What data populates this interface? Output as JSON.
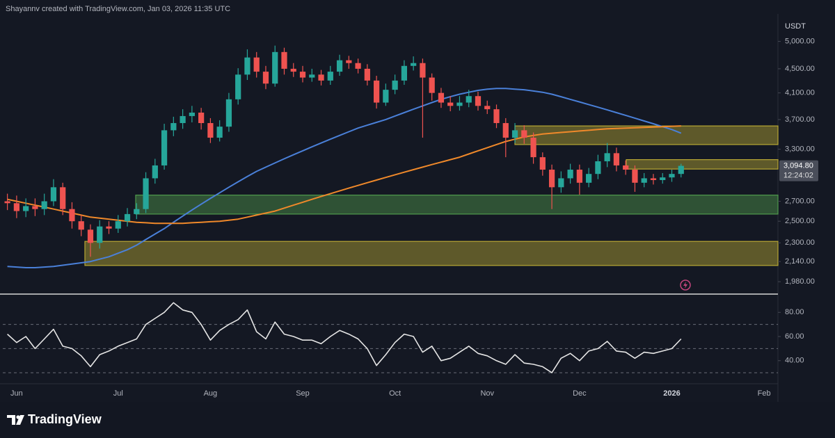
{
  "header": "Shayannv created with TradingView.com, Jan 03, 2026 11:35 UTC",
  "footer_brand": "TradingView",
  "chart_data": [
    {
      "type": "candlestick",
      "log_scale": true,
      "grid": false,
      "currency": "USDT",
      "up_color": "#26a69a",
      "down_color": "#ef5350",
      "categories": [
        null,
        "Jun",
        null,
        null,
        null,
        null,
        null,
        null,
        null,
        null,
        null,
        null,
        "Jul",
        null,
        null,
        null,
        null,
        null,
        null,
        null,
        null,
        null,
        "Aug",
        null,
        null,
        null,
        null,
        null,
        null,
        null,
        null,
        null,
        "Sep",
        null,
        null,
        null,
        null,
        null,
        null,
        null,
        null,
        null,
        "Oct",
        null,
        null,
        null,
        null,
        null,
        null,
        null,
        null,
        null,
        "Nov",
        null,
        null,
        null,
        null,
        null,
        null,
        null,
        null,
        null,
        "Dec",
        null,
        null,
        null,
        null,
        null,
        null,
        null,
        null,
        null,
        "2026",
        null,
        null,
        null,
        null,
        null,
        null,
        null,
        null,
        null,
        "Feb",
        null
      ],
      "open": [
        2700,
        2680,
        2600,
        2650,
        2620,
        2700,
        2850,
        2620,
        2500,
        2420,
        2300,
        2450,
        2430,
        2500,
        2570,
        2620,
        2950,
        3100,
        3550,
        3650,
        3750,
        3800,
        3650,
        3450,
        3600,
        4000,
        4400,
        4700,
        4450,
        4250,
        4800,
        4500,
        4450,
        4350,
        4400,
        4300,
        4450,
        4650,
        4600,
        4500,
        4300,
        3950,
        4150,
        4300,
        4550,
        4600,
        4350,
        4100,
        3950,
        3900,
        3950,
        4050,
        3900,
        3850,
        3650,
        3450,
        3550,
        3450,
        3200,
        3050,
        2850,
        2950,
        3050,
        2900,
        3000,
        3150,
        3250,
        3100,
        3050,
        2900,
        2950,
        2930,
        2960,
        3000,
        null,
        null,
        null,
        null,
        null,
        null,
        null,
        null,
        null,
        null
      ],
      "high": [
        2780,
        2760,
        2730,
        2730,
        2780,
        2940,
        2900,
        2690,
        2560,
        2470,
        2510,
        2500,
        2560,
        2630,
        2680,
        3020,
        3180,
        3640,
        3740,
        3850,
        3900,
        3870,
        3720,
        3690,
        4100,
        4510,
        4850,
        4800,
        4550,
        4920,
        4880,
        4600,
        4550,
        4500,
        4480,
        4550,
        4750,
        4730,
        4680,
        4580,
        4380,
        4250,
        4400,
        4650,
        4720,
        4680,
        4420,
        4180,
        4050,
        4050,
        4150,
        4120,
        3980,
        3920,
        3720,
        3650,
        3620,
        3520,
        3260,
        3110,
        3030,
        3120,
        3110,
        3070,
        3230,
        3380,
        3320,
        3160,
        3100,
        3010,
        3000,
        3010,
        3050,
        3120,
        null,
        null,
        null,
        null,
        null,
        null,
        null,
        null,
        null,
        null
      ],
      "low": [
        2610,
        2530,
        2540,
        2550,
        2560,
        2650,
        2560,
        2430,
        2360,
        2180,
        2250,
        2380,
        2390,
        2450,
        2520,
        2580,
        2890,
        3050,
        3470,
        3570,
        3660,
        3560,
        3380,
        3400,
        3530,
        3920,
        4310,
        4350,
        4160,
        4200,
        4400,
        4360,
        4270,
        4280,
        4220,
        4230,
        4380,
        4500,
        4420,
        4220,
        3860,
        3900,
        4080,
        4230,
        4470,
        3450,
        3980,
        3870,
        3820,
        3830,
        3880,
        3830,
        3780,
        3580,
        3200,
        3380,
        3370,
        3120,
        2980,
        2620,
        2790,
        2890,
        2770,
        2850,
        2940,
        3080,
        3030,
        2990,
        2800,
        2850,
        2880,
        2890,
        2910,
        2960,
        null,
        null,
        null,
        null,
        null,
        null,
        null,
        null,
        null,
        null
      ],
      "close": [
        2680,
        2600,
        2650,
        2620,
        2700,
        2850,
        2620,
        2500,
        2420,
        2300,
        2450,
        2430,
        2500,
        2570,
        2620,
        2950,
        3100,
        3550,
        3650,
        3750,
        3800,
        3650,
        3450,
        3600,
        4000,
        4400,
        4700,
        4450,
        4250,
        4800,
        4500,
        4450,
        4350,
        4400,
        4300,
        4450,
        4650,
        4600,
        4500,
        4300,
        3950,
        4150,
        4300,
        4550,
        4600,
        4350,
        4100,
        3950,
        3900,
        3950,
        4050,
        3900,
        3850,
        3650,
        3450,
        3550,
        3450,
        3200,
        3050,
        2850,
        2950,
        3050,
        2900,
        3000,
        3150,
        3250,
        3100,
        3050,
        2900,
        2950,
        2930,
        2960,
        3000,
        3094.8,
        null,
        null,
        null,
        null,
        null,
        null,
        null,
        null,
        null,
        null
      ],
      "moving_averages": [
        {
          "color": "#4a80d9",
          "values": [
            2100,
            2095,
            2090,
            2090,
            2095,
            2100,
            2110,
            2120,
            2130,
            2140,
            2160,
            2180,
            2210,
            2240,
            2280,
            2330,
            2380,
            2430,
            2490,
            2550,
            2610,
            2670,
            2730,
            2790,
            2850,
            2910,
            2970,
            3030,
            3080,
            3130,
            3180,
            3230,
            3280,
            3330,
            3380,
            3430,
            3480,
            3530,
            3580,
            3620,
            3660,
            3700,
            3750,
            3800,
            3850,
            3900,
            3950,
            4000,
            4040,
            4080,
            4110,
            4140,
            4160,
            4170,
            4170,
            4160,
            4150,
            4130,
            4110,
            4080,
            4040,
            4000,
            3960,
            3920,
            3880,
            3840,
            3800,
            3760,
            3720,
            3680,
            3640,
            3600,
            3560,
            3510,
            null,
            null,
            null,
            null,
            null,
            null,
            null,
            null,
            null,
            null
          ]
        },
        {
          "color": "#f0892a",
          "values": [
            2720,
            2700,
            2680,
            2660,
            2640,
            2620,
            2600,
            2580,
            2560,
            2540,
            2530,
            2520,
            2510,
            2500,
            2490,
            2485,
            2480,
            2480,
            2480,
            2480,
            2485,
            2490,
            2495,
            2500,
            2510,
            2520,
            2540,
            2560,
            2580,
            2600,
            2630,
            2660,
            2690,
            2720,
            2750,
            2780,
            2810,
            2840,
            2870,
            2900,
            2930,
            2960,
            2990,
            3020,
            3050,
            3080,
            3110,
            3140,
            3170,
            3200,
            3240,
            3280,
            3320,
            3360,
            3400,
            3430,
            3460,
            3480,
            3500,
            3510,
            3520,
            3530,
            3540,
            3550,
            3560,
            3570,
            3575,
            3580,
            3585,
            3590,
            3595,
            3600,
            3605,
            3610,
            null,
            null,
            null,
            null,
            null,
            null,
            null,
            null,
            null,
            null
          ]
        }
      ],
      "zones": [
        {
          "low": 2570,
          "high": 2765,
          "color": "#4f9a4c"
        },
        {
          "low": 2108,
          "high": 2313,
          "color": "#b9a834"
        },
        {
          "low": 3360,
          "high": 3610,
          "color": "#b9a834"
        },
        {
          "low": 3057,
          "high": 3170,
          "color": "#b9a834"
        }
      ],
      "last_price": {
        "value": 3094.8,
        "label": "3,094.80"
      },
      "countdown": "12:24:02",
      "ylim": [
        1903,
        5560
      ],
      "yticks": [
        {
          "value": 1980,
          "label": "1,980.00"
        },
        {
          "value": 2140,
          "label": "2,140.00"
        },
        {
          "value": 2300,
          "label": "2,300.00"
        },
        {
          "value": 2500,
          "label": "2,500.00"
        },
        {
          "value": 2700,
          "label": "2,700.00"
        },
        {
          "value": 3300,
          "label": "3,300.00"
        },
        {
          "value": 3700,
          "label": "3,700.00"
        },
        {
          "value": 4100,
          "label": "4,100.00"
        },
        {
          "value": 4500,
          "label": "4,500.00"
        },
        {
          "value": 5000,
          "label": "5,000.00"
        }
      ]
    },
    {
      "type": "line",
      "color": "#e6e6e6",
      "grid": false,
      "values": [
        62,
        55,
        60,
        50,
        58,
        66,
        52,
        50,
        44,
        35,
        45,
        48,
        52,
        55,
        58,
        70,
        75,
        80,
        88,
        82,
        80,
        70,
        57,
        65,
        70,
        74,
        82,
        64,
        58,
        72,
        62,
        60,
        57,
        57,
        54,
        60,
        65,
        62,
        58,
        50,
        36,
        45,
        55,
        62,
        60,
        47,
        52,
        40,
        42,
        47,
        52,
        46,
        44,
        40,
        37,
        45,
        38,
        37,
        35,
        30,
        42,
        46,
        40,
        48,
        50,
        56,
        48,
        47,
        42,
        47,
        46,
        48,
        50,
        58,
        null,
        null,
        null,
        null,
        null,
        null,
        null,
        null,
        null,
        null
      ],
      "levels": [
        70,
        50,
        30
      ],
      "ylim": [
        22,
        94
      ],
      "yticks": [
        {
          "value": 40,
          "label": "40.00"
        },
        {
          "value": 60,
          "label": "60.00"
        },
        {
          "value": 80,
          "label": "80.00"
        }
      ]
    }
  ]
}
